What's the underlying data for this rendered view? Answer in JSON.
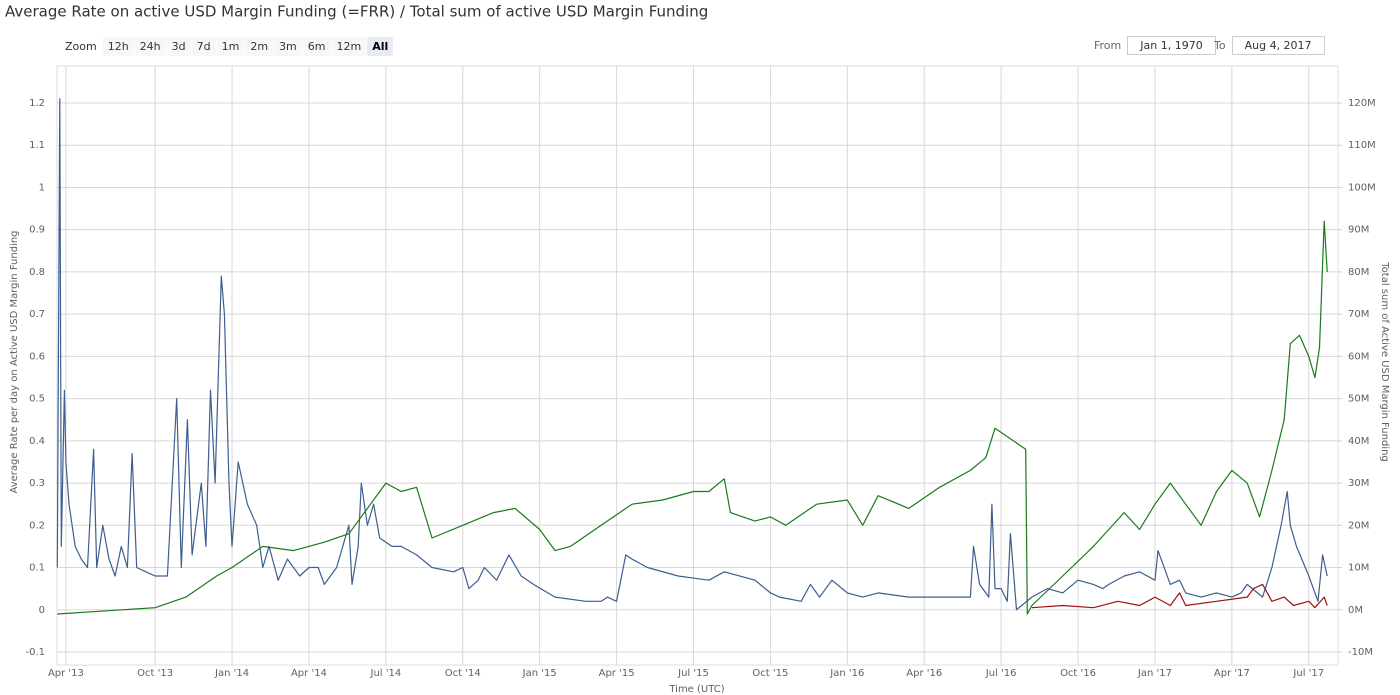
{
  "chart_data": {
    "type": "line",
    "title": "Average Rate on active USD Margin Funding (=FRR) / Total sum of active USD Margin Funding",
    "zoom_label": "Zoom",
    "zoom_buttons": [
      "12h",
      "24h",
      "3d",
      "7d",
      "1m",
      "2m",
      "3m",
      "6m",
      "12m",
      "All"
    ],
    "selected_zoom": "All",
    "from_label": "From",
    "from_date": "Jan 1, 1970",
    "to_label": "To",
    "to_date": "Aug 4, 2017",
    "x_label": "Time (UTC)",
    "y_label": "Average Rate per day on Active USD Margin Funding",
    "y2_label": "Total sum of Active USD Margin Funding",
    "xlim": [
      2013.431,
      2017.595
    ],
    "xticks": [
      {
        "value": 2013.46,
        "label": "Apr '13"
      },
      {
        "value": 2013.75,
        "label": "Oct '13"
      },
      {
        "value": 2014.0,
        "label": "Jan '14"
      },
      {
        "value": 2014.25,
        "label": "Apr '14"
      },
      {
        "value": 2014.5,
        "label": "Jul '14"
      },
      {
        "value": 2014.75,
        "label": "Oct '14"
      },
      {
        "value": 2015.0,
        "label": "Jan '15"
      },
      {
        "value": 2015.25,
        "label": "Apr '15"
      },
      {
        "value": 2015.5,
        "label": "Jul '15"
      },
      {
        "value": 2015.75,
        "label": "Oct '15"
      },
      {
        "value": 2016.0,
        "label": "Jan '16"
      },
      {
        "value": 2016.25,
        "label": "Apr '16"
      },
      {
        "value": 2016.5,
        "label": "Jul '16"
      },
      {
        "value": 2016.75,
        "label": "Oct '16"
      },
      {
        "value": 2017.0,
        "label": "Jan '17"
      },
      {
        "value": 2017.25,
        "label": "Apr '17"
      },
      {
        "value": 2017.5,
        "label": "Jul '17"
      }
    ],
    "ylim": [
      -0.1308,
      1.2876
    ],
    "yticks": [
      -0.1,
      0,
      0.1,
      0.2,
      0.3,
      0.4,
      0.5,
      0.6,
      0.7,
      0.8,
      0.9,
      1,
      1.1,
      1.2
    ],
    "y2lim": [
      -13080000,
      128760000
    ],
    "y2ticks": [
      {
        "value": -10000000,
        "label": "-10M"
      },
      {
        "value": 0,
        "label": "0M"
      },
      {
        "value": 10000000,
        "label": "10M"
      },
      {
        "value": 20000000,
        "label": "20M"
      },
      {
        "value": 30000000,
        "label": "30M"
      },
      {
        "value": 40000000,
        "label": "40M"
      },
      {
        "value": 50000000,
        "label": "50M"
      },
      {
        "value": 60000000,
        "label": "60M"
      },
      {
        "value": 70000000,
        "label": "70M"
      },
      {
        "value": 80000000,
        "label": "80M"
      },
      {
        "value": 90000000,
        "label": "90M"
      },
      {
        "value": 100000000,
        "label": "100M"
      },
      {
        "value": 110000000,
        "label": "110M"
      },
      {
        "value": 120000000,
        "label": "120M"
      }
    ],
    "grid": true,
    "series": [
      {
        "color": "#3d5e8f",
        "axis": "y",
        "x": [
          2013.432,
          2013.44,
          2013.445,
          2013.455,
          2013.46,
          2013.47,
          2013.49,
          2013.51,
          2013.53,
          2013.55,
          2013.56,
          2013.58,
          2013.6,
          2013.62,
          2013.64,
          2013.66,
          2013.675,
          2013.69,
          2013.72,
          2013.75,
          2013.79,
          2013.82,
          2013.835,
          2013.855,
          2013.87,
          2013.9,
          2013.915,
          2013.93,
          2013.945,
          2013.965,
          2013.975,
          2013.99,
          2014.0,
          2014.02,
          2014.05,
          2014.08,
          2014.1,
          2014.12,
          2014.15,
          2014.18,
          2014.22,
          2014.25,
          2014.28,
          2014.3,
          2014.34,
          2014.38,
          2014.39,
          2014.41,
          2014.42,
          2014.44,
          2014.46,
          2014.48,
          2014.52,
          2014.55,
          2014.6,
          2014.65,
          2014.72,
          2014.75,
          2014.77,
          2014.8,
          2014.82,
          2014.86,
          2014.9,
          2014.94,
          2014.98,
          2015.05,
          2015.15,
          2015.2,
          2015.22,
          2015.25,
          2015.28,
          2015.3,
          2015.35,
          2015.45,
          2015.55,
          2015.6,
          2015.7,
          2015.75,
          2015.78,
          2015.85,
          2015.88,
          2015.91,
          2015.95,
          2016.0,
          2016.05,
          2016.1,
          2016.2,
          2016.25,
          2016.35,
          2016.4,
          2016.41,
          2016.43,
          2016.46,
          2016.47,
          2016.48,
          2016.5,
          2016.52,
          2016.53,
          2016.55,
          2016.6,
          2016.65,
          2016.7,
          2016.75,
          2016.8,
          2016.83,
          2016.85,
          2016.9,
          2016.95,
          2017.0,
          2017.01,
          2017.05,
          2017.08,
          2017.1,
          2017.15,
          2017.2,
          2017.25,
          2017.28,
          2017.3,
          2017.35,
          2017.38,
          2017.41,
          2017.43,
          2017.44,
          2017.46,
          2017.5,
          2017.53,
          2017.545,
          2017.56
        ],
        "values": [
          0.1,
          1.21,
          0.15,
          0.52,
          0.35,
          0.25,
          0.15,
          0.12,
          0.1,
          0.38,
          0.1,
          0.2,
          0.12,
          0.08,
          0.15,
          0.1,
          0.37,
          0.1,
          0.09,
          0.08,
          0.08,
          0.5,
          0.1,
          0.45,
          0.13,
          0.3,
          0.15,
          0.52,
          0.3,
          0.79,
          0.7,
          0.3,
          0.15,
          0.35,
          0.25,
          0.2,
          0.1,
          0.15,
          0.07,
          0.12,
          0.08,
          0.1,
          0.1,
          0.06,
          0.1,
          0.2,
          0.06,
          0.15,
          0.3,
          0.2,
          0.25,
          0.17,
          0.15,
          0.15,
          0.13,
          0.1,
          0.09,
          0.1,
          0.05,
          0.07,
          0.1,
          0.07,
          0.13,
          0.08,
          0.06,
          0.03,
          0.02,
          0.02,
          0.03,
          0.02,
          0.13,
          0.12,
          0.1,
          0.08,
          0.07,
          0.09,
          0.07,
          0.04,
          0.03,
          0.02,
          0.06,
          0.03,
          0.07,
          0.04,
          0.03,
          0.04,
          0.03,
          0.03,
          0.03,
          0.03,
          0.15,
          0.06,
          0.03,
          0.25,
          0.05,
          0.05,
          0.02,
          0.18,
          0.0,
          0.03,
          0.05,
          0.04,
          0.07,
          0.06,
          0.05,
          0.06,
          0.08,
          0.09,
          0.07,
          0.14,
          0.06,
          0.07,
          0.04,
          0.03,
          0.04,
          0.03,
          0.04,
          0.06,
          0.03,
          0.1,
          0.2,
          0.28,
          0.2,
          0.15,
          0.08,
          0.02,
          0.13,
          0.08
        ]
      },
      {
        "color": "#1a7a1a",
        "axis": "y2",
        "x": [
          2013.432,
          2013.75,
          2013.85,
          2013.95,
          2014.0,
          2014.1,
          2014.2,
          2014.3,
          2014.38,
          2014.45,
          2014.5,
          2014.55,
          2014.6,
          2014.65,
          2014.75,
          2014.85,
          2014.92,
          2015.0,
          2015.05,
          2015.1,
          2015.2,
          2015.3,
          2015.4,
          2015.5,
          2015.55,
          2015.6,
          2015.62,
          2015.7,
          2015.75,
          2015.8,
          2015.9,
          2016.0,
          2016.05,
          2016.1,
          2016.2,
          2016.3,
          2016.4,
          2016.45,
          2016.48,
          2016.52,
          2016.58,
          2016.585,
          2016.6,
          2016.7,
          2016.8,
          2016.9,
          2016.95,
          2017.0,
          2017.05,
          2017.1,
          2017.15,
          2017.2,
          2017.25,
          2017.3,
          2017.34,
          2017.38,
          2017.42,
          2017.44,
          2017.47,
          2017.5,
          2017.52,
          2017.535,
          2017.55,
          2017.56
        ],
        "values": [
          -1000000,
          500000,
          3000000,
          8000000,
          10000000,
          15000000,
          14000000,
          16000000,
          18000000,
          25000000,
          30000000,
          28000000,
          29000000,
          17000000,
          20000000,
          23000000,
          24000000,
          19000000,
          14000000,
          15000000,
          20000000,
          25000000,
          26000000,
          28000000,
          28000000,
          31000000,
          23000000,
          21000000,
          22000000,
          20000000,
          25000000,
          26000000,
          20000000,
          27000000,
          24000000,
          29000000,
          33000000,
          36000000,
          43000000,
          41000000,
          38000000,
          -1000000,
          1000000,
          8000000,
          15000000,
          23000000,
          19000000,
          25000000,
          30000000,
          25000000,
          20000000,
          28000000,
          33000000,
          30000000,
          22000000,
          33000000,
          45000000,
          63000000,
          65000000,
          60000000,
          55000000,
          62000000,
          92000000,
          80000000
        ]
      },
      {
        "color": "#a01010",
        "axis": "y2",
        "x": [
          2016.6,
          2016.7,
          2016.8,
          2016.88,
          2016.95,
          2017.0,
          2017.05,
          2017.08,
          2017.1,
          2017.2,
          2017.3,
          2017.32,
          2017.35,
          2017.38,
          2017.42,
          2017.45,
          2017.5,
          2017.52,
          2017.55,
          2017.56
        ],
        "values": [
          500000,
          1000000,
          500000,
          2000000,
          1000000,
          3000000,
          1000000,
          4000000,
          1000000,
          2000000,
          3000000,
          5000000,
          6000000,
          2000000,
          3000000,
          1000000,
          2000000,
          500000,
          3000000,
          1000000
        ]
      }
    ]
  }
}
